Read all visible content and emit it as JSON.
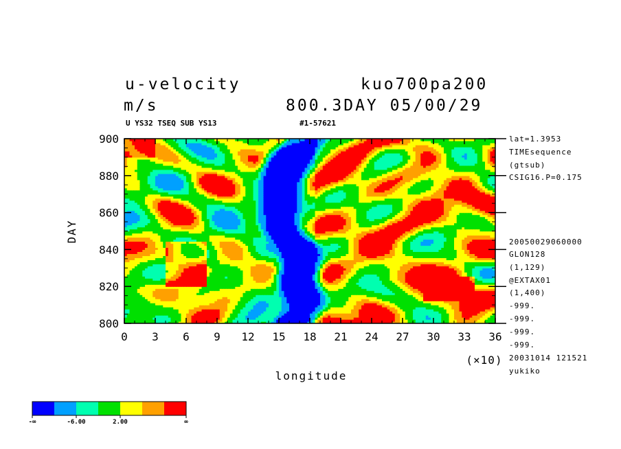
{
  "header": {
    "title_left": "u-velocity",
    "title_right": "kuo700pa200",
    "units": "m/s",
    "time_info": "800.3DAY 05/00/29",
    "subheader_left": "U YS32 TSEQ SUB YS13",
    "subheader_right": "#1-57621"
  },
  "sidebar_top": [
    "lat=1.3953",
    "TIMEsequence",
    "(gtsub)",
    "CSIG16.P=0.175"
  ],
  "sidebar_bottom": [
    "20050029060000",
    "GLON128",
    "(1,129)",
    "@EXTAX01",
    "(1,400)",
    "-999.",
    "-999.",
    "-999.",
    "-999.",
    "20031014 121521",
    "yukiko"
  ],
  "colors": {
    "levels": [
      "#0000ff",
      "#00a0ff",
      "#00ffb0",
      "#00e000",
      "#ffff00",
      "#ffa000",
      "#ff0000"
    ]
  },
  "colorbar_labels": [
    "-∞",
    "-6.00",
    "2.00",
    "∞"
  ],
  "chart_data": {
    "type": "heatmap",
    "xlabel": "longitude",
    "ylabel": "DAY",
    "x_multiplier_label": "(×10)",
    "xlim": [
      0,
      36
    ],
    "ylim": [
      800,
      900
    ],
    "x_ticks": [
      0,
      3,
      6,
      9,
      12,
      15,
      18,
      21,
      24,
      27,
      30,
      33,
      36
    ],
    "y_ticks": [
      800,
      820,
      840,
      860,
      880,
      900
    ],
    "colorbar_bounds": [
      "-inf",
      -6.0,
      2.0,
      "inf"
    ],
    "z_description": "u-velocity m/s; strong negative (blue) band near longitude 15-17.5 (x10) spanning all days; positive (red/orange) patches east of 18 and scattered west of 12"
  }
}
